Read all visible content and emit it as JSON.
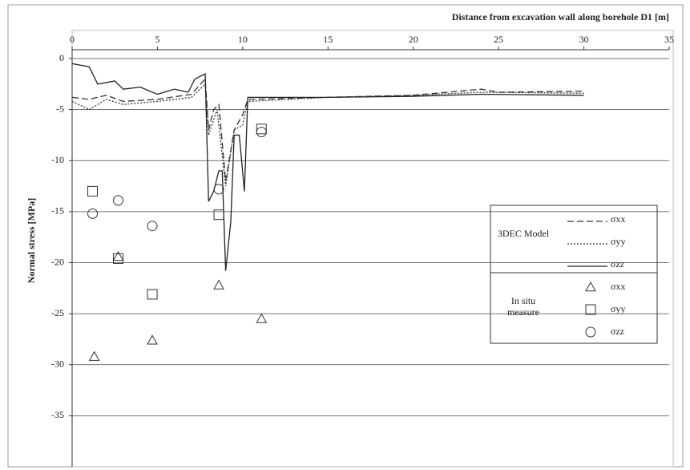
{
  "chart_data": {
    "type": "line",
    "x_label": "Distance from excavation wall along borehole D1 [m]",
    "y_label": "Normal stress [MPa]",
    "xlim": [
      0,
      35
    ],
    "xticks": [
      0,
      5,
      10,
      15,
      20,
      25,
      30,
      35
    ],
    "ylim": [
      -40,
      0
    ],
    "yticks": [
      0,
      -5,
      -10,
      -15,
      -20,
      -25,
      -30,
      -35
    ],
    "grid": true,
    "groups": [
      {
        "label": "3DEC Model",
        "series": [
          {
            "name": "σxx",
            "color": "#333333",
            "style": "dashed",
            "marker": "none",
            "x": [
              0,
              1,
              2,
              3,
              5,
              7,
              7.8,
              8.0,
              8.3,
              8.6,
              9.0,
              9.5,
              10.0,
              10.3,
              15,
              20,
              24,
              25,
              30
            ],
            "values": [
              -3.8,
              -4,
              -3.6,
              -4.2,
              -4.0,
              -3.5,
              -2,
              -7,
              -5,
              -4.5,
              -12,
              -7,
              -5.5,
              -4,
              -3.8,
              -3.6,
              -3,
              -3.3,
              -3.2
            ]
          },
          {
            "name": "σyy",
            "color": "#333333",
            "style": "dotted",
            "marker": "none",
            "x": [
              0,
              1,
              2,
              3,
              5,
              7,
              7.8,
              8.0,
              8.5,
              9.0,
              9.5,
              10.0,
              10.3,
              15,
              20,
              24,
              30
            ],
            "values": [
              -4.2,
              -5,
              -4,
              -4.5,
              -4.2,
              -3.8,
              -2.5,
              -7.5,
              -5,
              -12.5,
              -7,
              -6.5,
              -4.2,
              -3.8,
              -3.6,
              -3.3,
              -3.4
            ]
          },
          {
            "name": "σzz",
            "color": "#222222",
            "style": "solid",
            "marker": "none",
            "x": [
              0,
              1,
              1.5,
              2.5,
              3,
              4,
              5,
              6,
              6.8,
              7.2,
              7.8,
              8.0,
              8.3,
              8.6,
              8.8,
              9.0,
              9.3,
              9.5,
              9.8,
              10.1,
              10.3,
              15,
              20,
              24,
              30
            ],
            "values": [
              -0.5,
              -0.8,
              -2.5,
              -2.2,
              -3,
              -2.8,
              -3.5,
              -3,
              -3.3,
              -2,
              -1.5,
              -14,
              -13,
              -11,
              -11,
              -20.8,
              -16,
              -7.5,
              -7.5,
              -13,
              -3.8,
              -3.8,
              -3.7,
              -3.5,
              -3.6
            ]
          }
        ]
      },
      {
        "label": "In situ measure",
        "series": [
          {
            "name": "σxx",
            "color": "#333333",
            "style": "none",
            "marker": "triangle",
            "x": [
              1.3,
              2.7,
              4.7,
              8.6,
              11.1
            ],
            "values": [
              -29.2,
              -19.4,
              -27.6,
              -22.2,
              -25.5
            ]
          },
          {
            "name": "σyy",
            "color": "#333333",
            "style": "none",
            "marker": "square",
            "x": [
              1.2,
              2.7,
              4.7,
              8.6,
              11.1
            ],
            "values": [
              -13,
              -19.6,
              -23.1,
              -15.3,
              -6.9
            ]
          },
          {
            "name": "σzz",
            "color": "#333333",
            "style": "none",
            "marker": "circle",
            "x": [
              1.2,
              2.7,
              4.7,
              8.6,
              11.1
            ],
            "values": [
              -15.2,
              -13.9,
              -16.4,
              -12.8,
              -7.2
            ]
          }
        ]
      }
    ]
  }
}
